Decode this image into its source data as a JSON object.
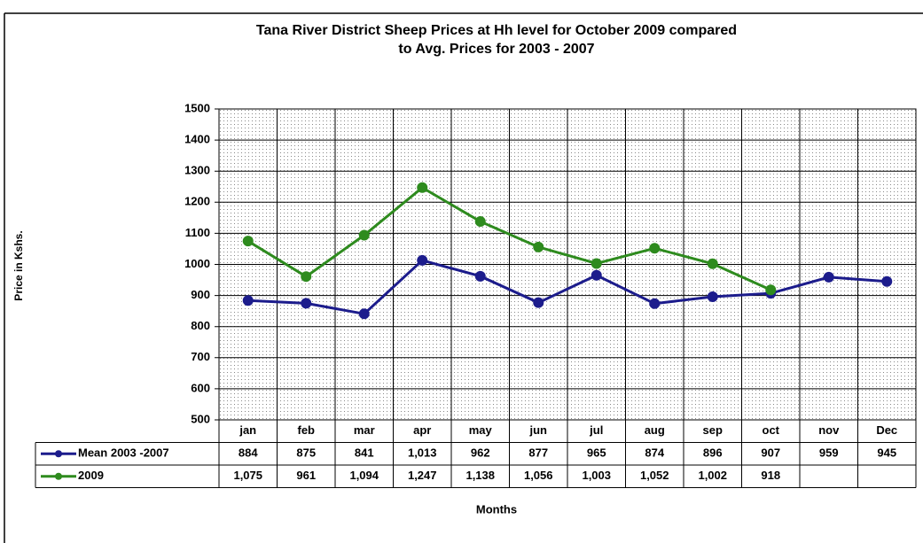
{
  "chart_data": {
    "type": "line",
    "title": [
      "Tana River District Sheep Prices at Hh level for October 2009 compared",
      "to Avg. Prices for 2003 - 2007"
    ],
    "y_label": "Price in Kshs.",
    "x_label": "Months",
    "categories": [
      "jan",
      "feb",
      "mar",
      "apr",
      "may",
      "jun",
      "jul",
      "aug",
      "sep",
      "oct",
      "nov",
      "Dec"
    ],
    "series": [
      {
        "name": "Mean 2003 -2007",
        "color": "#1c1c8c",
        "values": [
          884,
          875,
          841,
          1013,
          962,
          877,
          965,
          874,
          896,
          907,
          959,
          945
        ],
        "value_labels": [
          "884",
          "875",
          "841",
          "1,013",
          "962",
          "877",
          "965",
          "874",
          "896",
          "907",
          "959",
          "945"
        ]
      },
      {
        "name": "2009",
        "color": "#2e8b1e",
        "values": [
          1075,
          961,
          1094,
          1247,
          1138,
          1056,
          1003,
          1052,
          1002,
          918,
          null,
          null
        ],
        "value_labels": [
          "1,075",
          "961",
          "1,094",
          "1,247",
          "1,138",
          "1,056",
          "1,003",
          "1,052",
          "1,002",
          "918",
          null,
          null
        ]
      }
    ],
    "ylim": [
      500,
      1500
    ],
    "yticks": [
      500,
      600,
      700,
      800,
      900,
      1000,
      1100,
      1200,
      1300,
      1400,
      1500
    ],
    "grid": true,
    "data_table": true
  }
}
